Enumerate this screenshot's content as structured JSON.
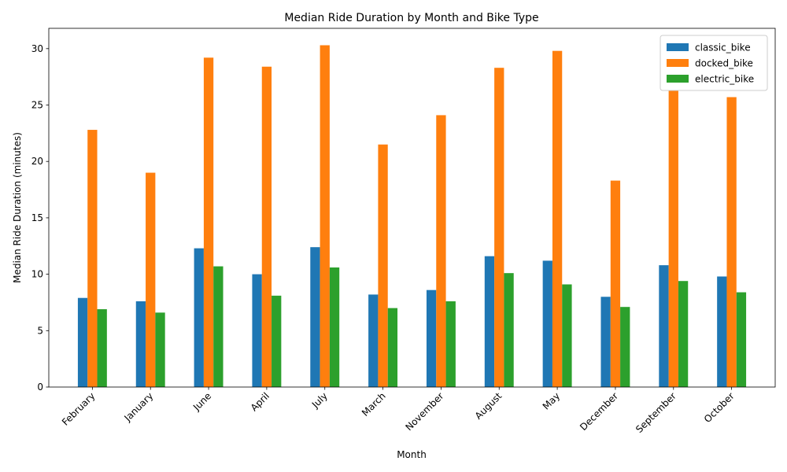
{
  "chart_data": {
    "type": "bar",
    "title": "Median Ride Duration by Month and Bike Type",
    "xlabel": "Month",
    "ylabel": "Median Ride Duration (minutes)",
    "ylim": [
      0,
      31.8
    ],
    "yticks": [
      0,
      5,
      10,
      15,
      20,
      25,
      30
    ],
    "legend_position": "top-right",
    "grid": false,
    "categories": [
      "February",
      "January",
      "June",
      "April",
      "July",
      "March",
      "November",
      "August",
      "May",
      "December",
      "September",
      "October"
    ],
    "series": [
      {
        "name": "classic_bike",
        "color": "#1f77b4",
        "values": [
          7.9,
          7.6,
          12.3,
          10.0,
          12.4,
          8.2,
          8.6,
          11.6,
          11.2,
          8.0,
          10.8,
          9.8
        ]
      },
      {
        "name": "docked_bike",
        "color": "#ff7f0e",
        "values": [
          22.8,
          19.0,
          29.2,
          28.4,
          30.3,
          21.5,
          24.1,
          28.3,
          29.8,
          18.3,
          26.3,
          25.7
        ]
      },
      {
        "name": "electric_bike",
        "color": "#2ca02c",
        "values": [
          6.9,
          6.6,
          10.7,
          8.1,
          10.6,
          7.0,
          7.6,
          10.1,
          9.1,
          7.1,
          9.4,
          8.4
        ]
      }
    ]
  }
}
